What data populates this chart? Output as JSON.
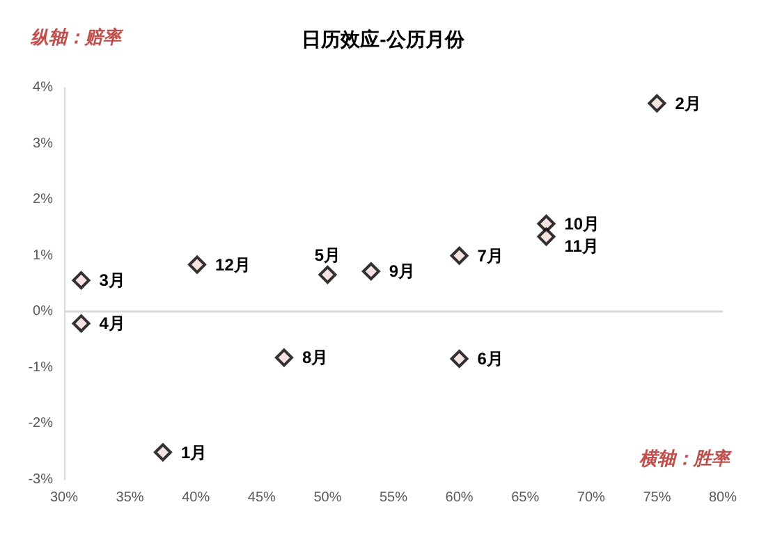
{
  "chart_data": {
    "type": "scatter",
    "title": "日历效应-公历月份",
    "xlabel": "横轴：胜率",
    "ylabel": "纵轴：赔率",
    "x": [
      37.5,
      75.0,
      31.3,
      31.3,
      50.0,
      60.0,
      60.0,
      46.7,
      53.3,
      66.6,
      66.6,
      40.1
    ],
    "series": [
      {
        "color": "#f2dcdb",
        "values": [
          -2.51,
          3.72,
          0.56,
          -0.21,
          0.66,
          -0.84,
          1.0,
          -0.82,
          0.72,
          1.57,
          1.34,
          0.84
        ]
      }
    ],
    "marker": "diamond",
    "grid": false,
    "xlim": [
      30,
      80
    ],
    "xticks": [
      {
        "value": 30,
        "label": "30%"
      },
      {
        "value": 35,
        "label": "35%"
      },
      {
        "value": 40,
        "label": "40%"
      },
      {
        "value": 45,
        "label": "45%"
      },
      {
        "value": 50,
        "label": "50%"
      },
      {
        "value": 55,
        "label": "55%"
      },
      {
        "value": 60,
        "label": "60%"
      },
      {
        "value": 65,
        "label": "65%"
      },
      {
        "value": 70,
        "label": "70%"
      },
      {
        "value": 75,
        "label": "75%"
      },
      {
        "value": 80,
        "label": "80%"
      }
    ],
    "ylim": [
      -3,
      4
    ],
    "yticks": [
      {
        "value": -3,
        "label": "-3%"
      },
      {
        "value": -2,
        "label": "-2%"
      },
      {
        "value": -1,
        "label": "-1%"
      },
      {
        "value": 0,
        "label": "0%"
      },
      {
        "value": 1,
        "label": "1%"
      },
      {
        "value": 2,
        "label": "2%"
      },
      {
        "value": 3,
        "label": "3%"
      },
      {
        "value": 4,
        "label": "4%"
      }
    ],
    "ref_lines": [
      {
        "axis": "y",
        "value": 0,
        "color": "#d9d9d9"
      }
    ],
    "annotations": [
      {
        "text": "1月",
        "x": 37.5,
        "y": -2.51
      },
      {
        "text": "2月",
        "x": 75.0,
        "y": 3.72
      },
      {
        "text": "3月",
        "x": 31.3,
        "y": 0.56
      },
      {
        "text": "4月",
        "x": 31.3,
        "y": -0.21
      },
      {
        "text": "5月",
        "x": 50.0,
        "y": 0.66
      },
      {
        "text": "6月",
        "x": 60.0,
        "y": -0.84
      },
      {
        "text": "7月",
        "x": 60.0,
        "y": 1.0
      },
      {
        "text": "8月",
        "x": 46.7,
        "y": -0.82
      },
      {
        "text": "9月",
        "x": 53.3,
        "y": 0.72
      },
      {
        "text": "10月",
        "x": 66.6,
        "y": 1.57
      },
      {
        "text": "11月",
        "x": 66.6,
        "y": 1.34
      },
      {
        "text": "12月",
        "x": 40.1,
        "y": 0.84
      }
    ]
  }
}
